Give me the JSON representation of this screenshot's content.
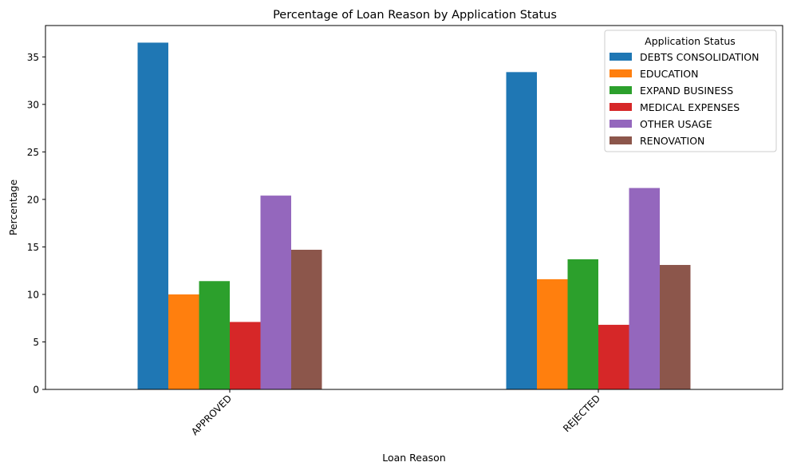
{
  "chart_data": {
    "type": "bar",
    "title": "Percentage of Loan Reason by Application Status",
    "xlabel": "Loan Reason",
    "ylabel": "Percentage",
    "categories": [
      "APPROVED",
      "REJECTED"
    ],
    "ylim": [
      0,
      38.3
    ],
    "yticks": [
      0,
      5,
      10,
      15,
      20,
      25,
      30,
      35
    ],
    "grid": false,
    "legend": {
      "title": "Application Status",
      "placement": "top-right"
    },
    "series": [
      {
        "name": "DEBTS CONSOLIDATION",
        "color": "#1f77b4",
        "values": [
          36.5,
          33.4
        ]
      },
      {
        "name": "EDUCATION",
        "color": "#ff7f0e",
        "values": [
          10.0,
          11.6
        ]
      },
      {
        "name": "EXPAND BUSINESS",
        "color": "#2ca02c",
        "values": [
          11.4,
          13.7
        ]
      },
      {
        "name": "MEDICAL EXPENSES",
        "color": "#d62728",
        "values": [
          7.1,
          6.8
        ]
      },
      {
        "name": "OTHER USAGE",
        "color": "#9467bd",
        "values": [
          20.4,
          21.2
        ]
      },
      {
        "name": "RENOVATION",
        "color": "#8c564b",
        "values": [
          14.7,
          13.1
        ]
      }
    ]
  }
}
